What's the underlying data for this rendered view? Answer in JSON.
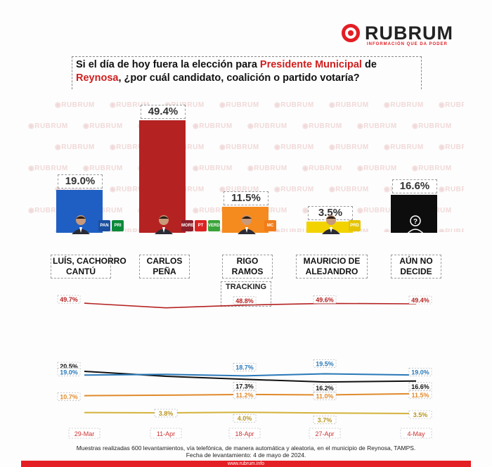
{
  "brand": {
    "name": "RUBRUM",
    "tagline": "INFORMACIÓN QUE DA PODER",
    "accent_color": "#e31e24"
  },
  "question": {
    "part1": "Si el día de hoy fuera la elección para ",
    "highlight1": "Presidente Municipal",
    "part2": " de ",
    "highlight2": "Reynosa",
    "part3": ", ¿por cuál candidato, coalición o partido votaría?"
  },
  "watermark_text": "RUBRUM",
  "candidates": [
    {
      "name_line1": "LUÍS, CACHORRO",
      "name_line2": "CANTÚ",
      "value_label": "19.0%",
      "value": 19.0,
      "color": "#1f5fc4",
      "icon": "candidate-photo",
      "parties": [
        "PAN",
        "PRI"
      ]
    },
    {
      "name_line1": "CARLOS",
      "name_line2": "PEÑA",
      "value_label": "49.4%",
      "value": 49.4,
      "color": "#b52222",
      "icon": "candidate-photo",
      "parties": [
        "MORENA",
        "PT",
        "VERDE"
      ]
    },
    {
      "name_line1": "RIGO",
      "name_line2": "RAMOS",
      "value_label": "11.5%",
      "value": 11.5,
      "color": "#f58a1f",
      "icon": "candidate-photo",
      "parties": [
        "MC"
      ]
    },
    {
      "name_line1": "MAURICIO DE",
      "name_line2": "ALEJANDRO",
      "value_label": "3.5%",
      "value": 3.5,
      "color": "#f2d300",
      "icon": "candidate-photo",
      "parties": [
        "PRD"
      ]
    },
    {
      "name_line1": "AÚN NO",
      "name_line2": "DECIDE",
      "value_label": "16.6%",
      "value": 16.6,
      "color": "#0d0d0d",
      "icon": "unknown-person-icon",
      "parties": []
    }
  ],
  "tracking": {
    "label": "TRACKING"
  },
  "chart_data": [
    {
      "type": "bar",
      "title": "",
      "categories": [
        "LUÍS, CACHORRO CANTÚ",
        "CARLOS PEÑA",
        "RIGO RAMOS",
        "MAURICIO DE ALEJANDRO",
        "AÚN NO DECIDE"
      ],
      "values": [
        19.0,
        49.4,
        11.5,
        3.5,
        16.6
      ],
      "ylim": [
        0,
        52
      ]
    },
    {
      "type": "line",
      "title": "TRACKING",
      "x": [
        "29-Mar",
        "11-Apr",
        "18-Apr",
        "27-Apr",
        "4-May"
      ],
      "series": [
        {
          "color": "#b52222",
          "values": [
            49.7,
            47.5,
            48.8,
            49.6,
            49.4
          ],
          "labels": [
            "49.7%",
            "",
            "48.8%",
            "49.6%",
            "49.4%"
          ]
        },
        {
          "color": "#111111",
          "values": [
            20.5,
            18.5,
            17.3,
            16.2,
            16.6
          ],
          "labels": [
            "20.5%",
            "",
            "17.3%",
            "16.2%",
            "16.6%"
          ]
        },
        {
          "color": "#2a78b8",
          "values": [
            19.0,
            19.3,
            18.7,
            19.5,
            19.0
          ],
          "labels": [
            "19.0%",
            "",
            "18.7%",
            "19.5%",
            "19.0%"
          ]
        },
        {
          "color": "#e08a2c",
          "values": [
            10.7,
            10.9,
            11.2,
            11.0,
            11.5
          ],
          "labels": [
            "10.7%",
            "",
            "11.2%",
            "11.0%",
            "11.5%"
          ]
        },
        {
          "color": "#d4b23a",
          "values": [
            3.9,
            3.8,
            4.0,
            3.7,
            3.5
          ],
          "labels": [
            "",
            "3.8%",
            "4.0%",
            "3.7%",
            "3.5%"
          ]
        }
      ]
    }
  ],
  "footnote": {
    "line1": "Muestras realizadas 600 levantamientos, vía telefónica, de manera automática y aleatoria, en el municipio de Reynosa, TAMPS.",
    "line2": "Fecha de levantamiento: 4 de mayo de 2024."
  },
  "footer_url": "www.rubrum.info"
}
